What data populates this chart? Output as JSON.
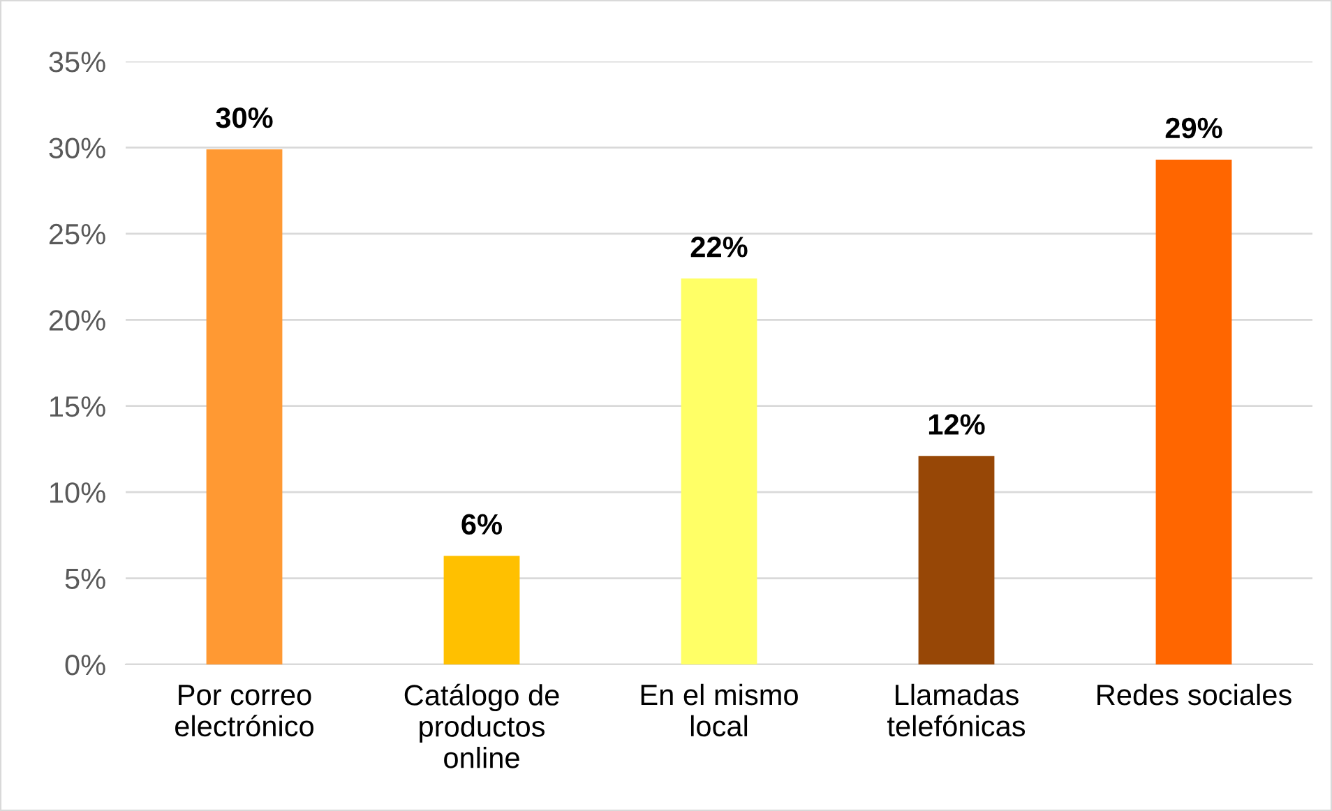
{
  "chart_data": {
    "type": "bar",
    "categories": [
      "Por correo\nelectrónico",
      "Catálogo de\nproductos\nonline",
      "En el mismo\nlocal",
      "Llamadas\ntelefónicas",
      "Redes sociales"
    ],
    "values": [
      29.9,
      6.3,
      22.4,
      12.1,
      29.3
    ],
    "colors": [
      "#ff9933",
      "#ffc000",
      "#ffff66",
      "#974706",
      "#ff6600"
    ],
    "value_labels": [
      "30%",
      "6%",
      "22%",
      "12%",
      "29%"
    ],
    "ylim": [
      0,
      35
    ],
    "yticks": [
      {
        "value": 0,
        "label": "0%"
      },
      {
        "value": 5,
        "label": "5%"
      },
      {
        "value": 10,
        "label": "10%"
      },
      {
        "value": 15,
        "label": "15%"
      },
      {
        "value": 20,
        "label": "20%"
      },
      {
        "value": 25,
        "label": "25%"
      },
      {
        "value": 30,
        "label": "30%"
      },
      {
        "value": 35,
        "label": "35%"
      }
    ],
    "grid": "y",
    "legend": false
  }
}
